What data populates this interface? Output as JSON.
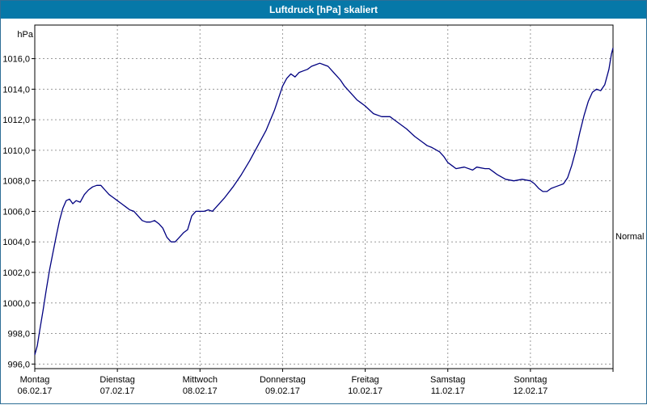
{
  "window": {
    "title": "Luftdruck [hPa] skaliert"
  },
  "colors": {
    "titlebar": "#0678a8",
    "title_text": "#ffffff",
    "grid": "#9a9a9a",
    "plot_border": "#000000",
    "line": "#000080",
    "tick_text": "#000000"
  },
  "chart_data": {
    "type": "line",
    "title": "Luftdruck [hPa] skaliert",
    "xlabel": "",
    "ylabel": "hPa",
    "grid": true,
    "legend": "none",
    "xlim": [
      0,
      7
    ],
    "ylim": [
      995.7,
      1018.2
    ],
    "line_color": "#000080",
    "yticks": [
      {
        "value": 996,
        "label": "996,0"
      },
      {
        "value": 998,
        "label": "998,0"
      },
      {
        "value": 1000,
        "label": "1000,0"
      },
      {
        "value": 1002,
        "label": "1002,0"
      },
      {
        "value": 1004,
        "label": "1004,0"
      },
      {
        "value": 1006,
        "label": "1006,0"
      },
      {
        "value": 1008,
        "label": "1008,0"
      },
      {
        "value": 1010,
        "label": "1010,0"
      },
      {
        "value": 1012,
        "label": "1012,0"
      },
      {
        "value": 1014,
        "label": "1014,0"
      },
      {
        "value": 1016,
        "label": "1016,0"
      }
    ],
    "xticks": [
      {
        "value": 0,
        "label": "Montag",
        "date": "06.02.17"
      },
      {
        "value": 1,
        "label": "Dienstag",
        "date": "07.02.17"
      },
      {
        "value": 2,
        "label": "Mittwoch",
        "date": "08.02.17"
      },
      {
        "value": 3,
        "label": "Donnerstag",
        "date": "09.02.17"
      },
      {
        "value": 4,
        "label": "Freitag",
        "date": "10.02.17"
      },
      {
        "value": 5,
        "label": "Samstag",
        "date": "11.02.17"
      },
      {
        "value": 6,
        "label": "Sonntag",
        "date": "12.02.17"
      }
    ],
    "x_gridlines": [
      0,
      1,
      2,
      3,
      4,
      5,
      6,
      7
    ],
    "annotations": [
      {
        "text": "Normal",
        "value": 1004.3,
        "side": "right"
      }
    ],
    "series": [
      {
        "name": "Luftdruck",
        "points": [
          [
            0,
            996.6
          ],
          [
            0.03,
            997.2
          ],
          [
            0.06,
            998.2
          ],
          [
            0.1,
            999.5
          ],
          [
            0.14,
            1000.9
          ],
          [
            0.18,
            1002.2
          ],
          [
            0.22,
            1003.3
          ],
          [
            0.26,
            1004.4
          ],
          [
            0.3,
            1005.4
          ],
          [
            0.34,
            1006.2
          ],
          [
            0.38,
            1006.7
          ],
          [
            0.42,
            1006.8
          ],
          [
            0.46,
            1006.5
          ],
          [
            0.5,
            1006.7
          ],
          [
            0.55,
            1006.6
          ],
          [
            0.6,
            1007.1
          ],
          [
            0.65,
            1007.4
          ],
          [
            0.7,
            1007.6
          ],
          [
            0.75,
            1007.7
          ],
          [
            0.8,
            1007.7
          ],
          [
            0.85,
            1007.4
          ],
          [
            0.9,
            1007.1
          ],
          [
            0.95,
            1006.9
          ],
          [
            1,
            1006.7
          ],
          [
            1.05,
            1006.5
          ],
          [
            1.1,
            1006.3
          ],
          [
            1.15,
            1006.1
          ],
          [
            1.2,
            1006.0
          ],
          [
            1.25,
            1005.7
          ],
          [
            1.3,
            1005.4
          ],
          [
            1.35,
            1005.3
          ],
          [
            1.4,
            1005.3
          ],
          [
            1.45,
            1005.4
          ],
          [
            1.5,
            1005.2
          ],
          [
            1.55,
            1004.9
          ],
          [
            1.6,
            1004.3
          ],
          [
            1.65,
            1004.0
          ],
          [
            1.7,
            1004.0
          ],
          [
            1.75,
            1004.3
          ],
          [
            1.8,
            1004.6
          ],
          [
            1.85,
            1004.8
          ],
          [
            1.9,
            1005.7
          ],
          [
            1.95,
            1006.0
          ],
          [
            2,
            1006.0
          ],
          [
            2.05,
            1006.0
          ],
          [
            2.1,
            1006.1
          ],
          [
            2.15,
            1006.0
          ],
          [
            2.2,
            1006.3
          ],
          [
            2.3,
            1006.9
          ],
          [
            2.4,
            1007.6
          ],
          [
            2.5,
            1008.4
          ],
          [
            2.6,
            1009.3
          ],
          [
            2.7,
            1010.3
          ],
          [
            2.8,
            1011.3
          ],
          [
            2.9,
            1012.6
          ],
          [
            2.95,
            1013.4
          ],
          [
            3,
            1014.2
          ],
          [
            3.05,
            1014.7
          ],
          [
            3.1,
            1015.0
          ],
          [
            3.15,
            1014.8
          ],
          [
            3.2,
            1015.1
          ],
          [
            3.25,
            1015.2
          ],
          [
            3.3,
            1015.3
          ],
          [
            3.35,
            1015.5
          ],
          [
            3.4,
            1015.6
          ],
          [
            3.45,
            1015.7
          ],
          [
            3.5,
            1015.6
          ],
          [
            3.55,
            1015.5
          ],
          [
            3.6,
            1015.2
          ],
          [
            3.65,
            1014.9
          ],
          [
            3.7,
            1014.6
          ],
          [
            3.75,
            1014.2
          ],
          [
            3.8,
            1013.9
          ],
          [
            3.85,
            1013.6
          ],
          [
            3.9,
            1013.3
          ],
          [
            3.95,
            1013.1
          ],
          [
            4,
            1012.9
          ],
          [
            4.1,
            1012.4
          ],
          [
            4.2,
            1012.2
          ],
          [
            4.3,
            1012.2
          ],
          [
            4.35,
            1012.0
          ],
          [
            4.4,
            1011.8
          ],
          [
            4.5,
            1011.4
          ],
          [
            4.6,
            1010.9
          ],
          [
            4.7,
            1010.5
          ],
          [
            4.75,
            1010.3
          ],
          [
            4.8,
            1010.2
          ],
          [
            4.9,
            1009.9
          ],
          [
            4.95,
            1009.6
          ],
          [
            5,
            1009.2
          ],
          [
            5.05,
            1009.0
          ],
          [
            5.1,
            1008.8
          ],
          [
            5.2,
            1008.9
          ],
          [
            5.3,
            1008.7
          ],
          [
            5.35,
            1008.9
          ],
          [
            5.45,
            1008.8
          ],
          [
            5.5,
            1008.8
          ],
          [
            5.55,
            1008.6
          ],
          [
            5.6,
            1008.4
          ],
          [
            5.7,
            1008.1
          ],
          [
            5.8,
            1008.0
          ],
          [
            5.9,
            1008.1
          ],
          [
            6,
            1008.0
          ],
          [
            6.05,
            1007.8
          ],
          [
            6.1,
            1007.5
          ],
          [
            6.15,
            1007.3
          ],
          [
            6.2,
            1007.3
          ],
          [
            6.25,
            1007.5
          ],
          [
            6.3,
            1007.6
          ],
          [
            6.35,
            1007.7
          ],
          [
            6.4,
            1007.8
          ],
          [
            6.45,
            1008.2
          ],
          [
            6.5,
            1009.0
          ],
          [
            6.55,
            1010.0
          ],
          [
            6.6,
            1011.2
          ],
          [
            6.65,
            1012.3
          ],
          [
            6.7,
            1013.2
          ],
          [
            6.75,
            1013.8
          ],
          [
            6.8,
            1014.0
          ],
          [
            6.85,
            1013.9
          ],
          [
            6.9,
            1014.3
          ],
          [
            6.95,
            1015.3
          ],
          [
            6.98,
            1016.3
          ],
          [
            7,
            1016.7
          ]
        ]
      }
    ]
  }
}
